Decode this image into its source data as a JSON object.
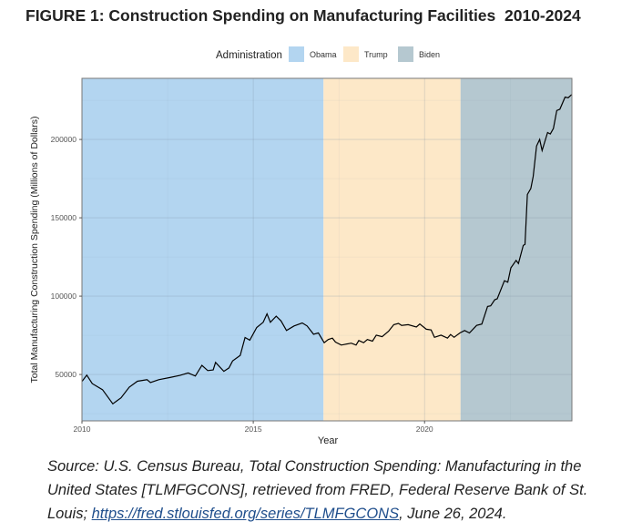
{
  "figure_title": "FIGURE 1: Construction Spending on Manufacturing Facilities  2010-2024",
  "source": {
    "prefix": "Source: U.S. Census Bureau, Total Construction Spending: Manufacturing in the United States [TLMFGCONS], retrieved from FRED, Federal Reserve Bank of St. Louis; ",
    "link": "https://fred.stlouisfed.org/series/TLMFGCONS",
    "suffix": ", June 26, 2024."
  },
  "chart_data": {
    "type": "line",
    "title": "",
    "xlabel": "Year",
    "ylabel": "Total Manufacturing Construction Spending (Millions of Dollars)",
    "xlim": [
      2010,
      2024.3
    ],
    "ylim": [
      20400,
      239000
    ],
    "x_ticks": [
      2010,
      2015,
      2020
    ],
    "y_ticks": [
      50000,
      100000,
      150000,
      200000
    ],
    "grid": true,
    "legend": {
      "title": "Administration",
      "position": "top",
      "entries": [
        {
          "name": "Obama",
          "color": "#b3d5f0"
        },
        {
          "name": "Trump",
          "color": "#fde8c8"
        },
        {
          "name": "Biden",
          "color": "#b5c8d0"
        }
      ]
    },
    "shaded_periods": [
      {
        "name": "Obama",
        "from": 2010,
        "to": 2017.05,
        "color": "#b3d5f0"
      },
      {
        "name": "Trump",
        "from": 2017.05,
        "to": 2021.05,
        "color": "#fde8c8"
      },
      {
        "name": "Biden",
        "from": 2021.05,
        "to": 2024.3,
        "color": "#b5c8d0"
      }
    ],
    "series": [
      {
        "color": "#000000",
        "x": [
          2010.0,
          2010.14,
          2010.3,
          2010.6,
          2010.9,
          2011.14,
          2011.38,
          2011.62,
          2011.9,
          2012.0,
          2012.24,
          2012.57,
          2012.86,
          2013.1,
          2013.31,
          2013.5,
          2013.67,
          2013.83,
          2013.9,
          2014.14,
          2014.29,
          2014.4,
          2014.62,
          2014.76,
          2014.9,
          2015.1,
          2015.29,
          2015.4,
          2015.5,
          2015.67,
          2015.81,
          2015.97,
          2016.19,
          2016.43,
          2016.57,
          2016.76,
          2016.9,
          2017.07,
          2017.19,
          2017.31,
          2017.4,
          2017.57,
          2017.86,
          2018.0,
          2018.08,
          2018.22,
          2018.33,
          2018.48,
          2018.59,
          2018.76,
          2018.95,
          2019.1,
          2019.24,
          2019.33,
          2019.52,
          2019.76,
          2019.86,
          2020.05,
          2020.19,
          2020.29,
          2020.48,
          2020.67,
          2020.76,
          2020.86,
          2021.03,
          2021.17,
          2021.31,
          2021.52,
          2021.67,
          2021.84,
          2021.93,
          2022.05,
          2022.12,
          2022.33,
          2022.43,
          2022.52,
          2022.67,
          2022.74,
          2022.88,
          2022.93,
          2023.0,
          2023.1,
          2023.17,
          2023.27,
          2023.36,
          2023.43,
          2023.59,
          2023.67,
          2023.76,
          2023.86,
          2023.95,
          2024.1,
          2024.19,
          2024.29
        ],
        "y": [
          45600,
          49600,
          44200,
          40300,
          31300,
          35100,
          41900,
          45700,
          46700,
          44800,
          46700,
          48100,
          49400,
          51000,
          49000,
          55800,
          52500,
          52900,
          57700,
          52000,
          54200,
          58700,
          62200,
          73600,
          71900,
          80000,
          83300,
          88700,
          83300,
          87200,
          84200,
          78100,
          81000,
          82900,
          81000,
          75700,
          76500,
          70300,
          72300,
          73200,
          70700,
          68800,
          70000,
          68800,
          71700,
          70300,
          72300,
          71300,
          75100,
          74100,
          77600,
          81800,
          82600,
          81300,
          81800,
          80300,
          82200,
          78900,
          78400,
          73700,
          75100,
          73200,
          75500,
          73700,
          76500,
          78100,
          76500,
          81300,
          82200,
          93400,
          93800,
          97700,
          98300,
          109800,
          108900,
          118100,
          122800,
          120800,
          132400,
          133000,
          164900,
          168700,
          176400,
          195800,
          200000,
          192900,
          204400,
          203500,
          207000,
          218500,
          219300,
          227000,
          226600,
          228600
        ]
      }
    ]
  }
}
